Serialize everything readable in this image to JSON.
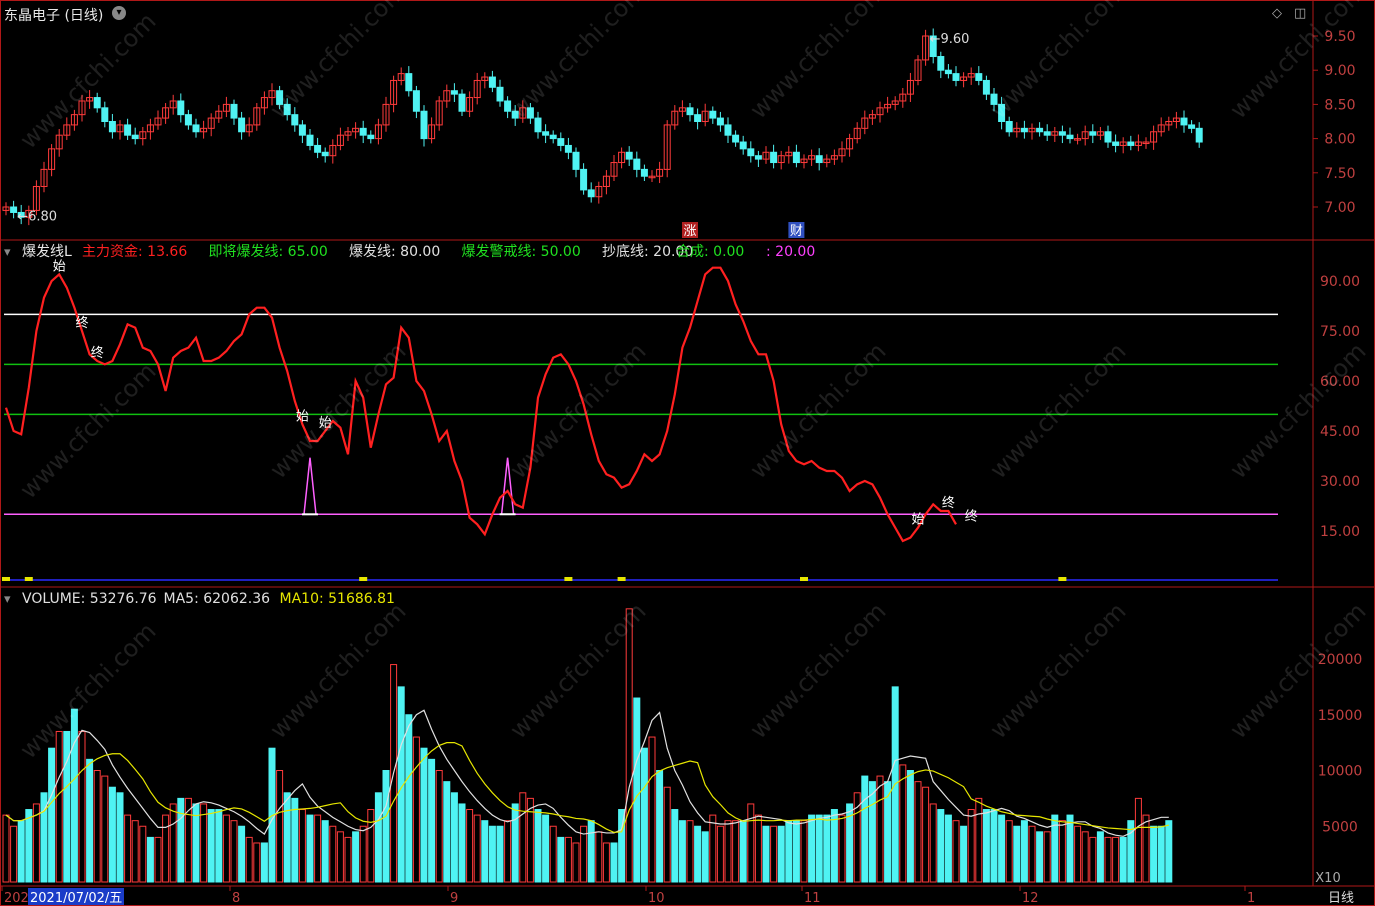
{
  "header": {
    "title": "东晶电子 (日线)",
    "controls": [
      "◇",
      "◫"
    ]
  },
  "colors": {
    "up": "#ff3b3b",
    "down": "#4ff3f3",
    "frame": "#b01818",
    "grid": "#2a0000",
    "main_line": "#ff2020",
    "ma5": "#e0e0e0",
    "ma10": "#e6e600",
    "white_line": "#ffffff",
    "green_line": "#10c010",
    "magenta_line": "#ff60ff",
    "axis_text": "#c04040"
  },
  "chart_data": [
    {
      "type": "candlestick",
      "name": "price",
      "y_ticks": [
        9.5,
        9.0,
        8.5,
        8.0,
        7.5,
        7.0
      ],
      "ylim": [
        6.7,
        9.75
      ],
      "max_label": "9.60",
      "min_label": "6.80",
      "markers": [
        "涨",
        "财"
      ],
      "closes": [
        7.0,
        6.92,
        6.85,
        6.95,
        7.3,
        7.55,
        7.85,
        8.05,
        8.2,
        8.35,
        8.55,
        8.6,
        8.45,
        8.25,
        8.1,
        8.2,
        8.05,
        8.0,
        8.1,
        8.2,
        8.3,
        8.45,
        8.55,
        8.35,
        8.2,
        8.1,
        8.15,
        8.3,
        8.4,
        8.5,
        8.3,
        8.1,
        8.2,
        8.45,
        8.6,
        8.7,
        8.5,
        8.35,
        8.2,
        8.05,
        7.9,
        7.8,
        7.75,
        7.9,
        8.05,
        8.1,
        8.15,
        8.05,
        8.0,
        8.2,
        8.5,
        8.85,
        8.95,
        8.7,
        8.4,
        8.0,
        8.2,
        8.55,
        8.7,
        8.65,
        8.4,
        8.6,
        8.85,
        8.9,
        8.75,
        8.55,
        8.4,
        8.3,
        8.45,
        8.3,
        8.1,
        8.05,
        8.0,
        7.9,
        7.8,
        7.55,
        7.25,
        7.15,
        7.3,
        7.45,
        7.65,
        7.8,
        7.7,
        7.55,
        7.45,
        7.45,
        7.55,
        8.2,
        8.4,
        8.45,
        8.35,
        8.25,
        8.4,
        8.3,
        8.2,
        8.05,
        7.95,
        7.85,
        7.75,
        7.7,
        7.8,
        7.65,
        7.75,
        7.8,
        7.65,
        7.7,
        7.75,
        7.65,
        7.7,
        7.75,
        7.85,
        8.0,
        8.15,
        8.3,
        8.35,
        8.45,
        8.5,
        8.55,
        8.65,
        8.85,
        9.15,
        9.5,
        9.2,
        9.0,
        8.95,
        8.85,
        8.9,
        8.95,
        8.85,
        8.65,
        8.5,
        8.25,
        8.1,
        8.15,
        8.1,
        8.15,
        8.1,
        8.05,
        8.1,
        8.05,
        8.0,
        8.0,
        8.1,
        8.05,
        8.1,
        7.95,
        7.9,
        7.95,
        7.9,
        7.95,
        7.95,
        8.1,
        8.2,
        8.25,
        8.3,
        8.2,
        8.15,
        7.95
      ],
      "x_labels": [
        "2021/07/02/五",
        "8",
        "9",
        "10",
        "11",
        "12",
        "1"
      ]
    },
    {
      "type": "line",
      "name": "爆发线L",
      "legend": [
        {
          "label": "主力资金:",
          "value": "13.66"
        },
        {
          "label": "即将爆发线:",
          "value": "65.00"
        },
        {
          "label": "爆发线:",
          "value": "80.00"
        },
        {
          "label": "爆发警戒线:",
          "value": "50.00"
        },
        {
          "label": "抄底线:",
          "value": "20.00"
        },
        {
          "label": "合成:",
          "value": "0.00"
        },
        {
          "label": ":",
          "value": "20.00"
        }
      ],
      "y_ticks": [
        90,
        75,
        60,
        45,
        30,
        15
      ],
      "ylim": [
        0,
        97
      ],
      "levels": [
        80,
        65,
        50,
        20
      ],
      "signal_labels": [
        "始",
        "终"
      ],
      "values": [
        52,
        45,
        44,
        58,
        75,
        85,
        90,
        92,
        88,
        82,
        75,
        68,
        66,
        65,
        66,
        71,
        77,
        76,
        70,
        69,
        65,
        57,
        67,
        69,
        70,
        73,
        66,
        66,
        67,
        69,
        72,
        74,
        80,
        82,
        82,
        79,
        70,
        63,
        54,
        47,
        42,
        42,
        45,
        48,
        46,
        38,
        60,
        55,
        40,
        50,
        59,
        61,
        76,
        73,
        60,
        57,
        50,
        42,
        45,
        36,
        30,
        19,
        17,
        14,
        20,
        25,
        27,
        23,
        22,
        34,
        55,
        62,
        67,
        68,
        65,
        60,
        53,
        44,
        36,
        32,
        31,
        28,
        29,
        33,
        38,
        36,
        38,
        45,
        56,
        70,
        76,
        84,
        92,
        94,
        94,
        90,
        83,
        78,
        72,
        68,
        68,
        60,
        47,
        39,
        36,
        35,
        36,
        34,
        33,
        33,
        31,
        27,
        29,
        30,
        29,
        25,
        20,
        16,
        12,
        13,
        16,
        20,
        23,
        21,
        21,
        17
      ],
      "spikes": [
        {
          "index": 40,
          "value": 37
        },
        {
          "index": 66,
          "value": 37
        }
      ]
    },
    {
      "type": "bar",
      "name": "VOLUME",
      "legend": [
        {
          "label": "VOLUME:",
          "value": "53276.76"
        },
        {
          "label": "MA5:",
          "value": "62062.36"
        },
        {
          "label": "MA10:",
          "value": "51686.81"
        }
      ],
      "y_ticks": [
        20000,
        15000,
        10000,
        5000
      ],
      "ylim": [
        0,
        24500
      ],
      "unit_label": "X10",
      "values": [
        6000,
        5000,
        5500,
        6500,
        7000,
        8000,
        12000,
        13500,
        13500,
        15500,
        13500,
        11000,
        10000,
        9500,
        8500,
        8000,
        6000,
        5500,
        5000,
        4000,
        4000,
        6000,
        7000,
        7500,
        7500,
        7000,
        7000,
        6500,
        6500,
        6000,
        5500,
        5000,
        4000,
        3500,
        3500,
        12000,
        10000,
        8000,
        7500,
        6500,
        6000,
        6000,
        5500,
        5000,
        4500,
        4000,
        4500,
        5000,
        6500,
        8000,
        10000,
        19500,
        17500,
        15000,
        13000,
        12000,
        11000,
        10000,
        9000,
        8000,
        7000,
        6500,
        6000,
        5500,
        5000,
        5000,
        5500,
        7000,
        8000,
        7500,
        6500,
        6000,
        5000,
        4000,
        4000,
        3500,
        5000,
        5500,
        4500,
        3500,
        3500,
        6500,
        24500,
        16500,
        12000,
        13000,
        10000,
        8500,
        6500,
        5500,
        5500,
        5000,
        4500,
        6000,
        5000,
        5500,
        5500,
        5500,
        7000,
        6000,
        5000,
        5000,
        5000,
        5500,
        5500,
        5500,
        6000,
        6000,
        6000,
        6500,
        6000,
        7000,
        8000,
        9500,
        9000,
        9500,
        9000,
        17500,
        10500,
        10000,
        9000,
        8500,
        7000,
        6500,
        6000,
        5500,
        5000,
        6500,
        7500,
        6500,
        6500,
        6000,
        5500,
        5000,
        5500,
        5000,
        4500,
        4500,
        6000,
        5500,
        6000,
        5000,
        4500,
        4000,
        4500,
        4000,
        4000,
        4000,
        5500,
        7500,
        6000,
        5000,
        5000,
        5500
      ],
      "dirs": "uudduddudduduudduuuduuudududduuduudduddududuuuduudduddudduddduuddduduudduduuuduudduddududdudduuuuduududdduddddududdudduduuudduduuddduddudududuuuduudduudd"
    }
  ],
  "time_axis": {
    "labels": [
      "202",
      "2021/07/02/五",
      "8",
      "9",
      "10",
      "11",
      "12",
      "1"
    ],
    "period": "日线"
  },
  "watermark": "www.cfchi.com"
}
